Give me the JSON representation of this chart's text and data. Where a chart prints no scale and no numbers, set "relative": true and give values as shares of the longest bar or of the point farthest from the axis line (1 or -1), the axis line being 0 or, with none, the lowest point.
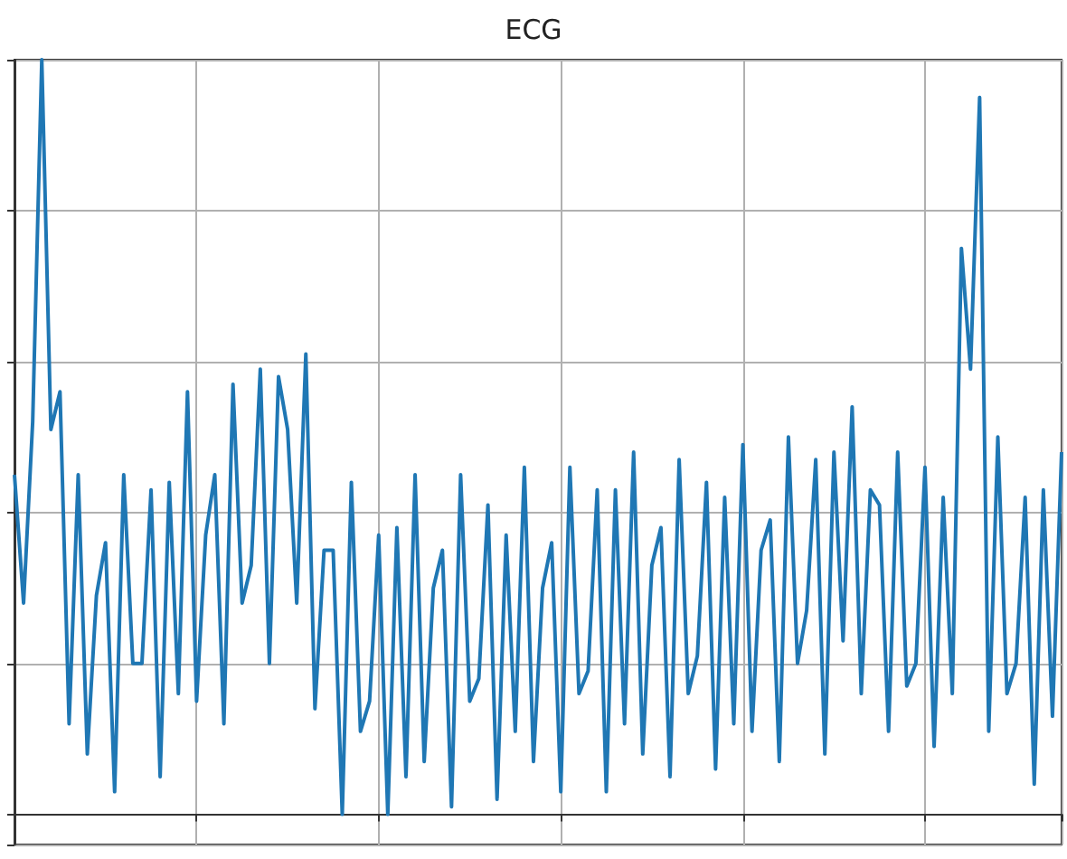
{
  "chart_data": {
    "type": "line",
    "title": "ECG",
    "relative": true,
    "grid": true,
    "color": "#1f77b4",
    "values": [
      0.45,
      0.28,
      0.52,
      1.0,
      0.51,
      0.56,
      0.12,
      0.45,
      0.08,
      0.29,
      0.36,
      0.03,
      0.45,
      0.2,
      0.2,
      0.43,
      0.05,
      0.44,
      0.16,
      0.56,
      0.15,
      0.37,
      0.45,
      0.12,
      0.57,
      0.28,
      0.33,
      0.59,
      0.2,
      0.58,
      0.51,
      0.28,
      0.61,
      0.14,
      0.35,
      0.35,
      0.0,
      0.44,
      0.11,
      0.15,
      0.37,
      0.0,
      0.38,
      0.05,
      0.45,
      0.07,
      0.3,
      0.35,
      0.01,
      0.45,
      0.15,
      0.18,
      0.41,
      0.02,
      0.37,
      0.11,
      0.46,
      0.07,
      0.3,
      0.36,
      0.03,
      0.46,
      0.16,
      0.19,
      0.43,
      0.03,
      0.43,
      0.12,
      0.48,
      0.08,
      0.33,
      0.38,
      0.05,
      0.47,
      0.16,
      0.21,
      0.44,
      0.06,
      0.42,
      0.12,
      0.49,
      0.11,
      0.35,
      0.39,
      0.07,
      0.5,
      0.2,
      0.27,
      0.47,
      0.08,
      0.48,
      0.23,
      0.54,
      0.16,
      0.43,
      0.41,
      0.11,
      0.48,
      0.17,
      0.2,
      0.46,
      0.09,
      0.42,
      0.16,
      0.75,
      0.59,
      0.95,
      0.11,
      0.5,
      0.16,
      0.2,
      0.42,
      0.04,
      0.43,
      0.13,
      0.48
    ],
    "categories": [
      null,
      null,
      null,
      null,
      null,
      null,
      null,
      null,
      null,
      null,
      null,
      null,
      null,
      null,
      null,
      null,
      null,
      null,
      null,
      null,
      null,
      null,
      null,
      null,
      null,
      null,
      null,
      null,
      null,
      null,
      null,
      null,
      null,
      null,
      null,
      null,
      null,
      null,
      null,
      null,
      null,
      null,
      null,
      null,
      null,
      null,
      null,
      null,
      null,
      null,
      null,
      null,
      null,
      null,
      null,
      null,
      null,
      null,
      null,
      null,
      null,
      null,
      null,
      null,
      null,
      null,
      null,
      null,
      null,
      null,
      null,
      null,
      null,
      null,
      null,
      null,
      null,
      null,
      null,
      null,
      null,
      null,
      null,
      null,
      null,
      null,
      null,
      null,
      null,
      null,
      null,
      null,
      null,
      null,
      null,
      null,
      null,
      null,
      null,
      null,
      null,
      null,
      null,
      null,
      null,
      null,
      null,
      null,
      null,
      null,
      null,
      null,
      null,
      null,
      null,
      null
    ]
  }
}
